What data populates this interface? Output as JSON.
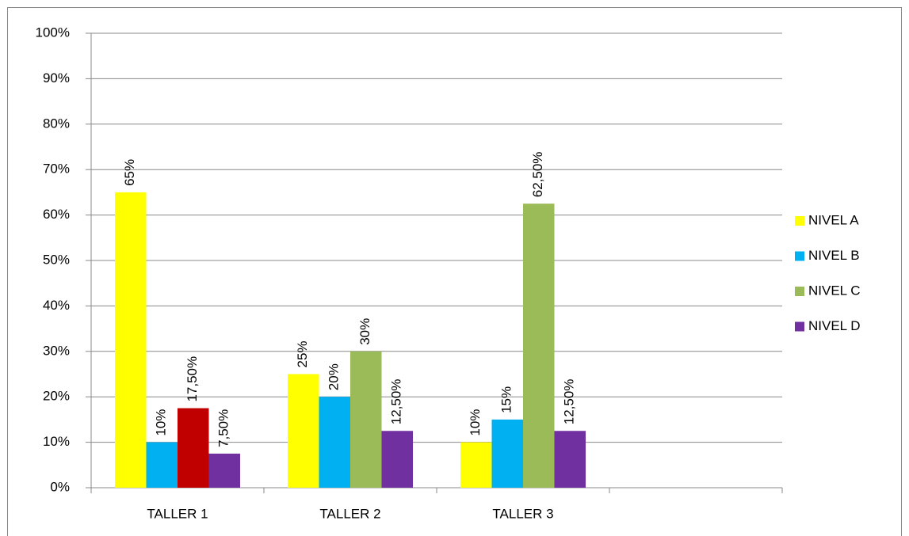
{
  "chart_data": {
    "type": "bar",
    "categories": [
      "TALLER 1",
      "TALLER 2",
      "TALLER 3",
      null
    ],
    "series": [
      {
        "name": "NIVEL A",
        "color": "#ffff00",
        "values": [
          65,
          25,
          10,
          null
        ],
        "value_labels": [
          "65%",
          "25%",
          "10%",
          null
        ]
      },
      {
        "name": "NIVEL B",
        "color": "#00b0f0",
        "values": [
          10,
          20,
          15,
          null
        ],
        "value_labels": [
          "10%",
          "20%",
          "15%",
          null
        ]
      },
      {
        "name": "NIVEL C",
        "color": "#9bbb59",
        "point_colors": [
          "#c00000",
          "#9bbb59",
          "#9bbb59",
          "#9bbb59"
        ],
        "values": [
          17.5,
          30,
          62.5,
          null
        ],
        "value_labels": [
          "17,50%",
          "30%",
          "62,50%",
          null
        ]
      },
      {
        "name": "NIVEL D",
        "color": "#7030a0",
        "values": [
          7.5,
          12.5,
          12.5,
          null
        ],
        "value_labels": [
          "7,50%",
          "12,50%",
          "12,50%",
          null
        ]
      }
    ],
    "ylim": [
      0,
      100
    ],
    "yticks": [
      {
        "value": 0,
        "label": "0%"
      },
      {
        "value": 10,
        "label": "10%"
      },
      {
        "value": 20,
        "label": "20%"
      },
      {
        "value": 30,
        "label": "30%"
      },
      {
        "value": 40,
        "label": "40%"
      },
      {
        "value": 50,
        "label": "50%"
      },
      {
        "value": 60,
        "label": "60%"
      },
      {
        "value": 70,
        "label": "70%"
      },
      {
        "value": 80,
        "label": "80%"
      },
      {
        "value": 90,
        "label": "90%"
      },
      {
        "value": 100,
        "label": "100%"
      }
    ],
    "grid": true,
    "legend": "right"
  }
}
